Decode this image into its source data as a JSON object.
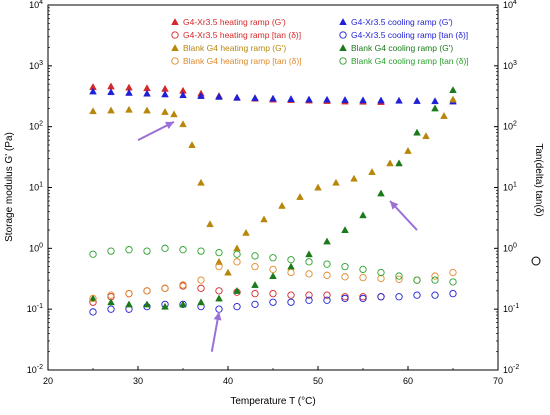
{
  "chart_data": {
    "type": "scatter",
    "xlabel": "Temperature T (°C)",
    "ylabel_left": "Storage modulus G' (Pa)",
    "ylabel_right": "Tan(delta) tan(δ)",
    "xlim": [
      20,
      70
    ],
    "ylim": [
      0.01,
      10000
    ],
    "y2lim": [
      0.01,
      10000
    ],
    "yscale": "log",
    "y2scale": "log",
    "x_ticks": [
      "20",
      "30",
      "40",
      "50",
      "60",
      "70"
    ],
    "y_ticks": [
      "10-2",
      "10-1",
      "100",
      "101",
      "102",
      "103",
      "104"
    ],
    "y_tick_values": [
      0.01,
      0.1,
      1,
      10,
      100,
      1000,
      10000
    ],
    "grid": false,
    "legend_position": "top",
    "legend_left": [
      {
        "series_index": 0,
        "label": "G4-Xr3.5 heating ramp (G')"
      },
      {
        "series_index": 2,
        "label": "G4-Xr3.5 heating ramp [tan (δ)]"
      },
      {
        "series_index": 4,
        "label": "Blank G4 heating ramp (G')"
      },
      {
        "series_index": 6,
        "label": "Blank G4 heating ramp [tan (δ)]"
      }
    ],
    "legend_right": [
      {
        "series_index": 1,
        "label": "G4-Xr3.5 cooling ramp (G')"
      },
      {
        "series_index": 3,
        "label": "G4-Xr3.5 cooling ramp [tan (δ)]"
      },
      {
        "series_index": 5,
        "label": "Blank G4 cooling ramp (G')"
      },
      {
        "series_index": 7,
        "label": "Blank G4 cooling ramp [tan (δ)]"
      }
    ],
    "series": [
      {
        "name": "G4-Xr3.5 heating ramp (G')",
        "marker": "triangle",
        "color": "#d62728",
        "axis": "left",
        "x": [
          25,
          27,
          29,
          31,
          33,
          35,
          37,
          39,
          41,
          43,
          45,
          47,
          49,
          51,
          53,
          55,
          57
        ],
        "y": [
          450,
          460,
          440,
          430,
          420,
          390,
          350,
          320,
          300,
          290,
          280,
          275,
          270,
          265,
          260,
          258,
          255
        ]
      },
      {
        "name": "G4-Xr3.5 cooling ramp (G')",
        "marker": "triangle",
        "color": "#1f1fd6",
        "axis": "left",
        "x": [
          25,
          27,
          29,
          31,
          33,
          35,
          37,
          39,
          41,
          43,
          45,
          47,
          49,
          51,
          53,
          55,
          57,
          59,
          61,
          63,
          65
        ],
        "y": [
          380,
          370,
          360,
          350,
          340,
          330,
          320,
          310,
          300,
          295,
          290,
          285,
          280,
          278,
          275,
          272,
          270,
          268,
          265,
          263,
          260
        ]
      },
      {
        "name": "G4-Xr3.5 heating ramp [tan (δ)]",
        "marker": "circle",
        "color": "#d62728",
        "axis": "right",
        "x": [
          25,
          27,
          29,
          31,
          33,
          35,
          37,
          39,
          41,
          43,
          45,
          47,
          49,
          51,
          53,
          55,
          57
        ],
        "y": [
          0.13,
          0.16,
          0.18,
          0.2,
          0.22,
          0.24,
          0.22,
          0.2,
          0.19,
          0.18,
          0.18,
          0.17,
          0.17,
          0.17,
          0.16,
          0.16,
          0.16
        ]
      },
      {
        "name": "G4-Xr3.5 cooling ramp [tan (δ)]",
        "marker": "circle",
        "color": "#1f1fd6",
        "axis": "right",
        "x": [
          25,
          27,
          29,
          31,
          33,
          35,
          37,
          39,
          41,
          43,
          45,
          47,
          49,
          51,
          53,
          55,
          57,
          59,
          61,
          63,
          65
        ],
        "y": [
          0.09,
          0.1,
          0.1,
          0.11,
          0.12,
          0.12,
          0.11,
          0.1,
          0.11,
          0.12,
          0.13,
          0.13,
          0.14,
          0.14,
          0.15,
          0.15,
          0.16,
          0.16,
          0.17,
          0.17,
          0.18
        ]
      },
      {
        "name": "Blank G4 heating ramp (G')",
        "marker": "triangle",
        "color": "#b8860b",
        "axis": "left",
        "x": [
          25,
          27,
          29,
          31,
          33,
          34,
          35,
          36,
          37,
          38,
          39,
          40,
          41,
          42,
          44,
          46,
          48,
          50,
          52,
          54,
          56,
          58,
          60,
          62,
          64,
          65
        ],
        "y": [
          180,
          185,
          190,
          185,
          175,
          160,
          110,
          50,
          12,
          2.5,
          0.6,
          0.4,
          1,
          1.8,
          3,
          5,
          7,
          10,
          12,
          14,
          18,
          25,
          40,
          70,
          150,
          280
        ]
      },
      {
        "name": "Blank G4 cooling ramp (G')",
        "marker": "triangle",
        "color": "#1a7a1a",
        "axis": "left",
        "x": [
          25,
          27,
          29,
          31,
          33,
          35,
          37,
          39,
          41,
          43,
          45,
          47,
          49,
          51,
          53,
          55,
          57,
          59,
          61,
          63,
          65
        ],
        "y": [
          0.15,
          0.13,
          0.12,
          0.12,
          0.11,
          0.12,
          0.13,
          0.15,
          0.2,
          0.25,
          0.35,
          0.5,
          0.8,
          1.3,
          2,
          3.5,
          8,
          25,
          80,
          200,
          400
        ]
      },
      {
        "name": "Blank G4 heating ramp [tan (δ)]",
        "marker": "circle",
        "color": "#e08a2c",
        "axis": "right",
        "x": [
          25,
          27,
          29,
          31,
          33,
          35,
          37,
          39,
          41,
          43,
          45,
          47,
          49,
          51,
          53,
          55,
          57,
          59,
          61,
          63,
          65
        ],
        "y": [
          0.15,
          0.17,
          0.18,
          0.2,
          0.22,
          0.25,
          0.3,
          0.5,
          0.6,
          0.5,
          0.45,
          0.4,
          0.38,
          0.36,
          0.34,
          0.33,
          0.32,
          0.31,
          0.3,
          0.35,
          0.4
        ]
      },
      {
        "name": "Blank G4 cooling ramp [tan (δ)]",
        "marker": "circle",
        "color": "#2ca02c",
        "axis": "right",
        "x": [
          25,
          27,
          29,
          31,
          33,
          35,
          37,
          39,
          41,
          43,
          45,
          47,
          49,
          51,
          53,
          55,
          57,
          59,
          61,
          63,
          65
        ],
        "y": [
          0.8,
          0.9,
          0.95,
          0.9,
          1,
          0.95,
          0.9,
          0.85,
          0.8,
          0.75,
          0.7,
          0.65,
          0.6,
          0.55,
          0.5,
          0.45,
          0.4,
          0.35,
          0.3,
          0.3,
          0.28
        ]
      }
    ],
    "arrows": [
      {
        "from": [
          30,
          60
        ],
        "to": [
          34,
          120
        ]
      },
      {
        "from": [
          38.2,
          0.02
        ],
        "to": [
          39,
          0.09
        ]
      },
      {
        "from": [
          61,
          2
        ],
        "to": [
          58,
          6
        ]
      }
    ]
  }
}
